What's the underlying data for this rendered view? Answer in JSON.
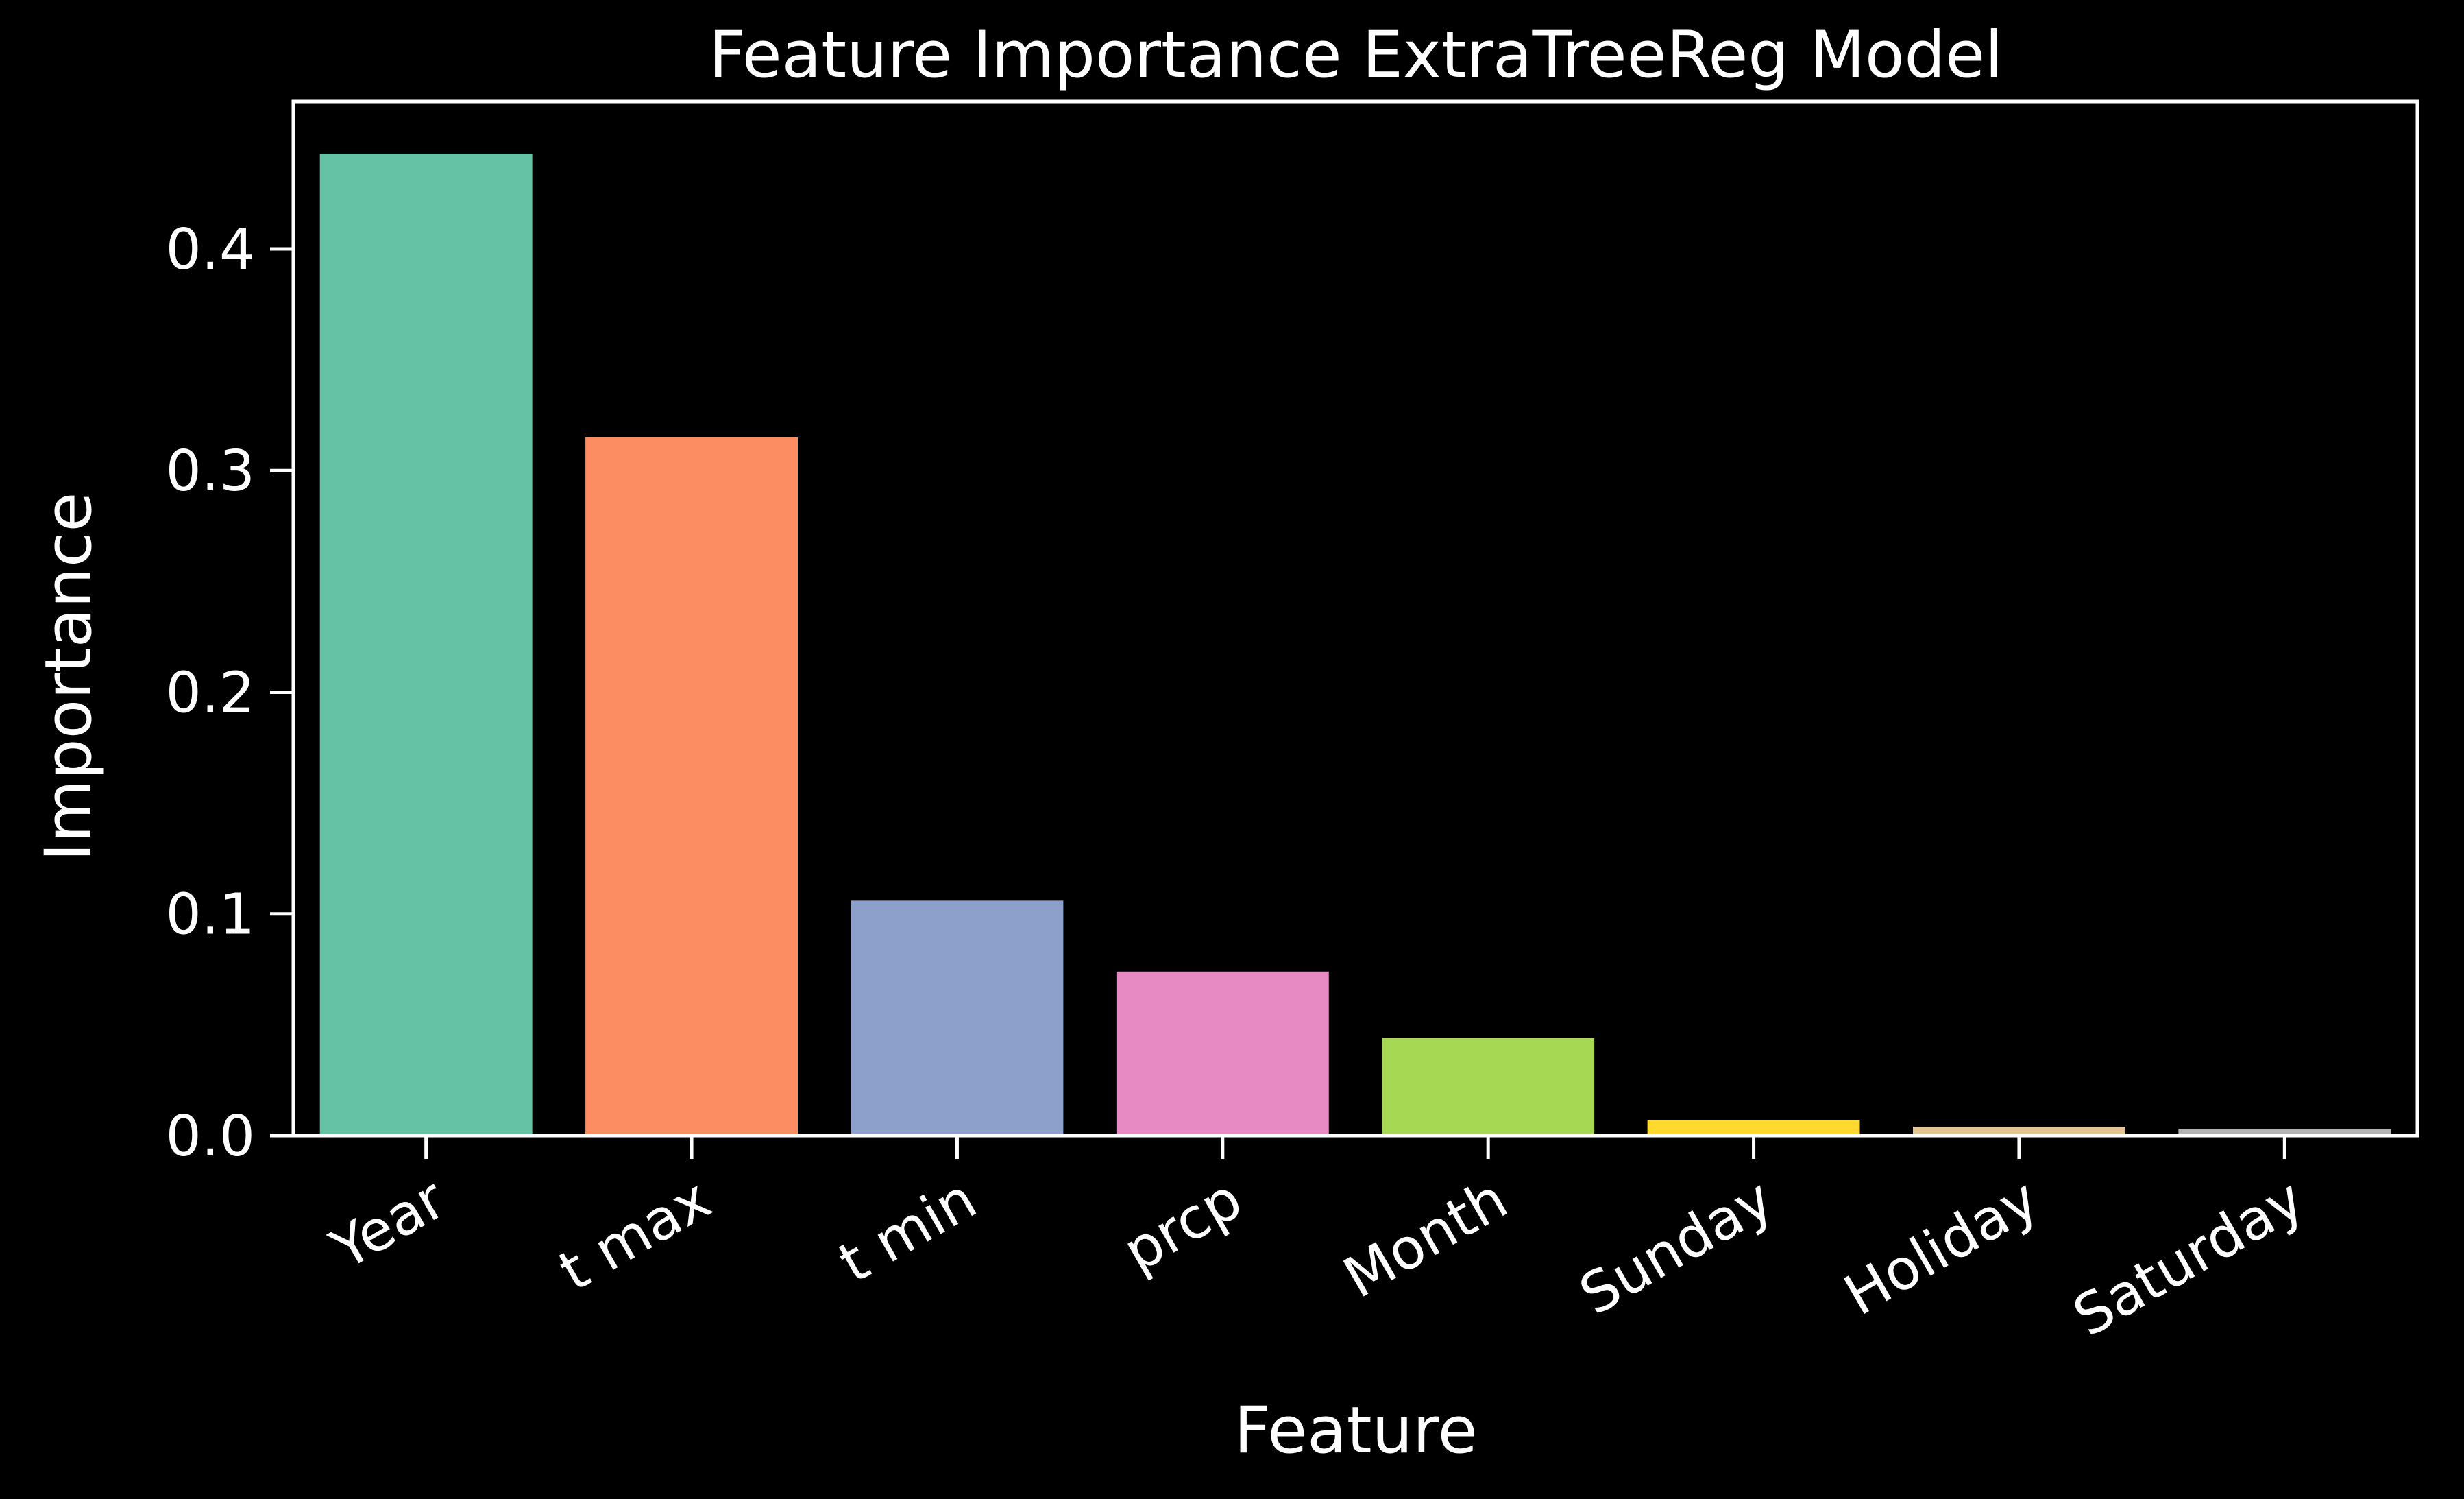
{
  "chart_data": {
    "type": "bar",
    "title": "Feature Importance ExtraTreeReg Model",
    "xlabel": "Feature",
    "ylabel": "Importance",
    "categories": [
      "Year",
      "t max",
      "t min",
      "prcp",
      "Month",
      "Sunday",
      "Holiday",
      "Saturday"
    ],
    "values": [
      0.443,
      0.315,
      0.106,
      0.074,
      0.044,
      0.007,
      0.004,
      0.003
    ],
    "colors": [
      "#66c2a5",
      "#fc8d62",
      "#8da0cb",
      "#e78ac3",
      "#a6d854",
      "#ffd92f",
      "#e5c494",
      "#b3b3b3"
    ],
    "ylim": [
      0,
      0.4665
    ],
    "yticks": [
      0.0,
      0.1,
      0.2,
      0.3,
      0.4
    ],
    "ytick_labels": [
      "0.0",
      "0.1",
      "0.2",
      "0.3",
      "0.4"
    ],
    "grid": false,
    "background": "#000000",
    "foreground": "#ffffff"
  }
}
